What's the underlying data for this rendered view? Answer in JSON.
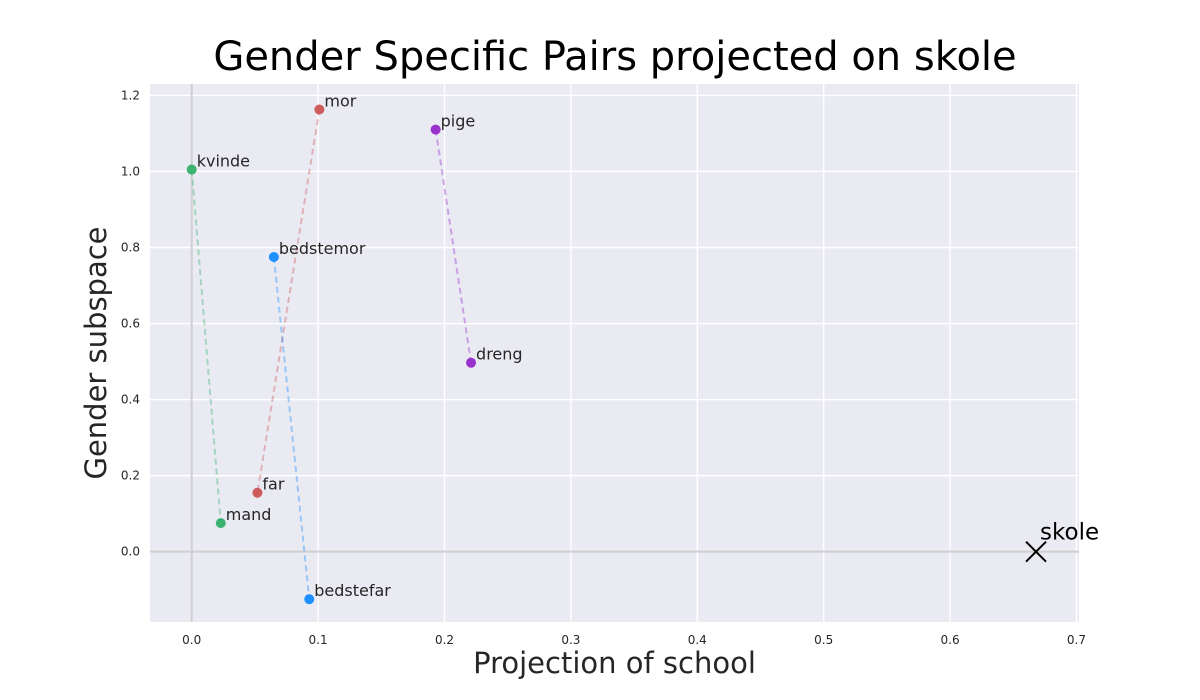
{
  "chart_data": {
    "type": "scatter",
    "title": "Gender Specific Pairs projected on skole",
    "xlabel": "Projection of school",
    "ylabel": "Gender subspace",
    "xlim": [
      -0.033,
      0.702
    ],
    "ylim": [
      -0.185,
      1.23
    ],
    "xticks": [
      0.0,
      0.1,
      0.2,
      0.3,
      0.4,
      0.5,
      0.6,
      0.7
    ],
    "yticks": [
      0.0,
      0.2,
      0.4,
      0.6,
      0.8,
      1.0,
      1.2
    ],
    "grid": true,
    "pairs": [
      {
        "color": "#3cb371",
        "points": [
          {
            "label": "kvinde",
            "x": 0.0,
            "y": 1.005
          },
          {
            "label": "mand",
            "x": 0.023,
            "y": 0.075
          }
        ]
      },
      {
        "color": "#cd5c5c",
        "points": [
          {
            "label": "mor",
            "x": 0.101,
            "y": 1.163
          },
          {
            "label": "far",
            "x": 0.052,
            "y": 0.155
          }
        ]
      },
      {
        "color": "#1e90ff",
        "points": [
          {
            "label": "bedstemor",
            "x": 0.065,
            "y": 0.775
          },
          {
            "label": "bedstefar",
            "x": 0.093,
            "y": -0.125
          }
        ]
      },
      {
        "color": "#9932cc",
        "points": [
          {
            "label": "pige",
            "x": 0.193,
            "y": 1.11
          },
          {
            "label": "dreng",
            "x": 0.221,
            "y": 0.497
          }
        ]
      }
    ],
    "reference": {
      "label": "skole",
      "x": 0.668,
      "y": 0.0,
      "marker": "x"
    }
  }
}
